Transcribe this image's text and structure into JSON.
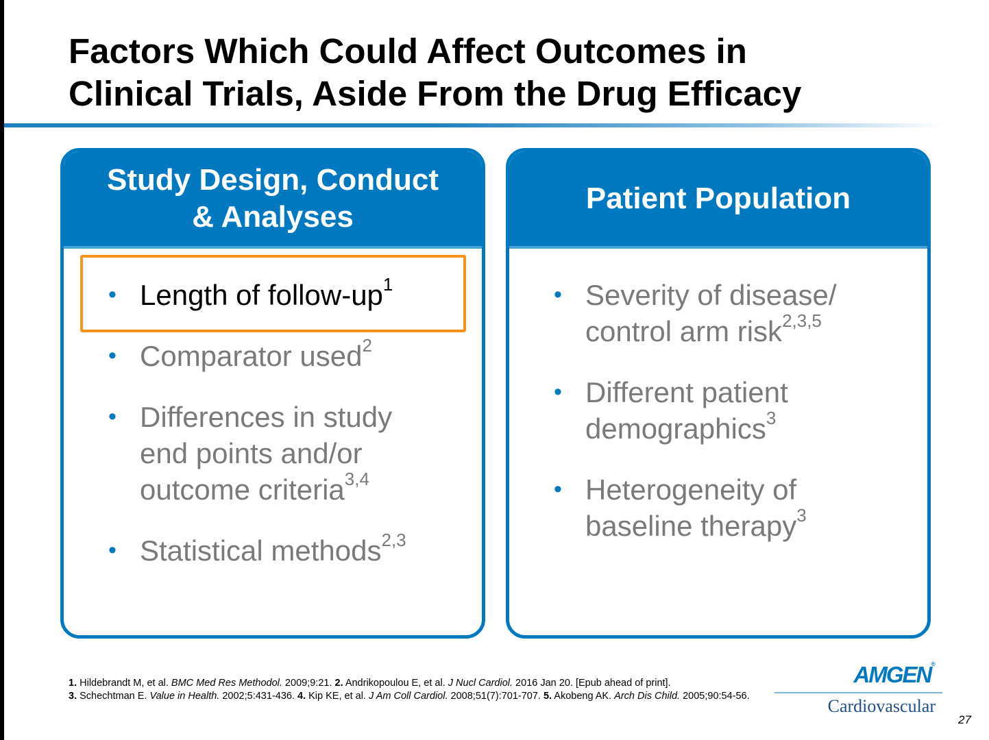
{
  "slide": {
    "title_line1": "Factors Which Could Affect Outcomes in",
    "title_line2": "Clinical Trials, Aside From the Drug Efficacy",
    "page_number": "27"
  },
  "left_panel": {
    "header_line1": "Study Design, Conduct",
    "header_line2": "& Analyses",
    "bullets": [
      {
        "lines": [
          "Length of follow-up"
        ],
        "sup": "1"
      },
      {
        "lines": [
          "Comparator used"
        ],
        "sup": "2"
      },
      {
        "lines": [
          "Differences in study",
          "end points and/or",
          "outcome criteria"
        ],
        "sup": "3,4"
      },
      {
        "lines": [
          "Statistical methods"
        ],
        "sup": "2,3"
      }
    ]
  },
  "right_panel": {
    "header": "Patient Population",
    "bullets": [
      {
        "lines": [
          "Severity of disease/",
          "control arm risk"
        ],
        "sup": "2,3,5"
      },
      {
        "lines": [
          "Different patient",
          "demographics"
        ],
        "sup": "3"
      },
      {
        "lines": [
          "Heterogeneity of",
          "baseline therapy"
        ],
        "sup": "3"
      }
    ]
  },
  "bullet_glyph": "•",
  "references": {
    "r1_num": "1.",
    "r1_author": " Hildebrandt M, et al.  ",
    "r1_journal": "BMC Med Res Methodol.",
    "r1_rest": " 2009;9:21. ",
    "r2_num": "2.",
    "r2_author": " Andrikopoulou E, et al. ",
    "r2_journal": "J Nucl Cardiol.",
    "r2_rest": " 2016 Jan 20. [Epub ahead of print].",
    "r3_num": "3.",
    "r3_author": " Schechtman E. ",
    "r3_journal": "Value in Health.",
    "r3_rest": " 2002;5:431-436. ",
    "r4_num": "4.",
    "r4_author": " Kip KE, et al. ",
    "r4_journal": "J Am Coll Cardiol.",
    "r4_rest": " 2008;51(7):701-707. ",
    "r5_num": "5.",
    "r5_author": " Akobeng AK. ",
    "r5_journal": "Arch Dis Child.",
    "r5_rest": " 2005;90:54-56."
  },
  "logo": {
    "brand": "AMGEN",
    "registered": "®",
    "division": "Cardiovascular"
  },
  "colors": {
    "accent_blue": "#0079c1",
    "highlight_orange": "#f7941d",
    "muted_text": "#7a7a7a"
  }
}
